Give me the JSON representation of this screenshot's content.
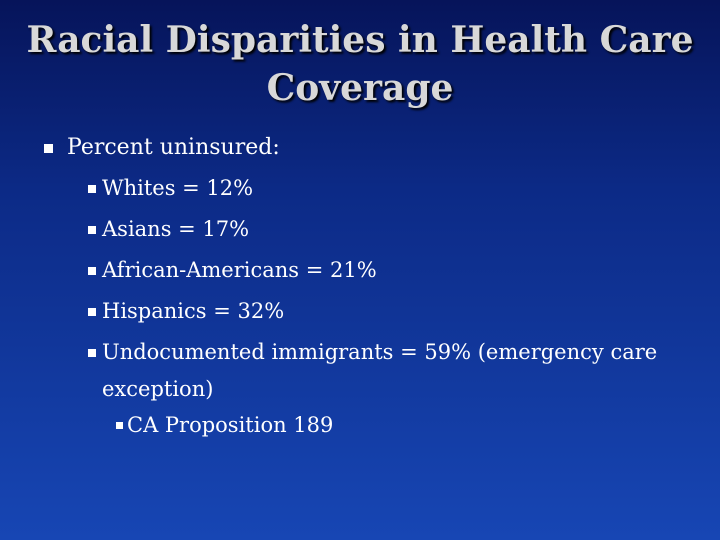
{
  "slide": {
    "title_line1": "Racial Disparities in Health Care",
    "title_line2": "Coverage",
    "bullets": [
      {
        "text": "Percent uninsured:",
        "level": 1
      },
      {
        "text": "Whites = 12%",
        "level": 2
      },
      {
        "text": "Asians = 17%",
        "level": 2
      },
      {
        "text": "African-Americans = 21%",
        "level": 2
      },
      {
        "text": "Hispanics = 32%",
        "level": 2
      },
      {
        "text": "Undocumented immigrants = 59% (emergency care exception)",
        "level": 2
      },
      {
        "text": "CA Proposition 189",
        "level": 3
      }
    ]
  },
  "colors": {
    "background_top": "#06145a",
    "background_bottom": "#1746b4",
    "title": "#d8d8d8",
    "body_text": "#ffffff"
  }
}
